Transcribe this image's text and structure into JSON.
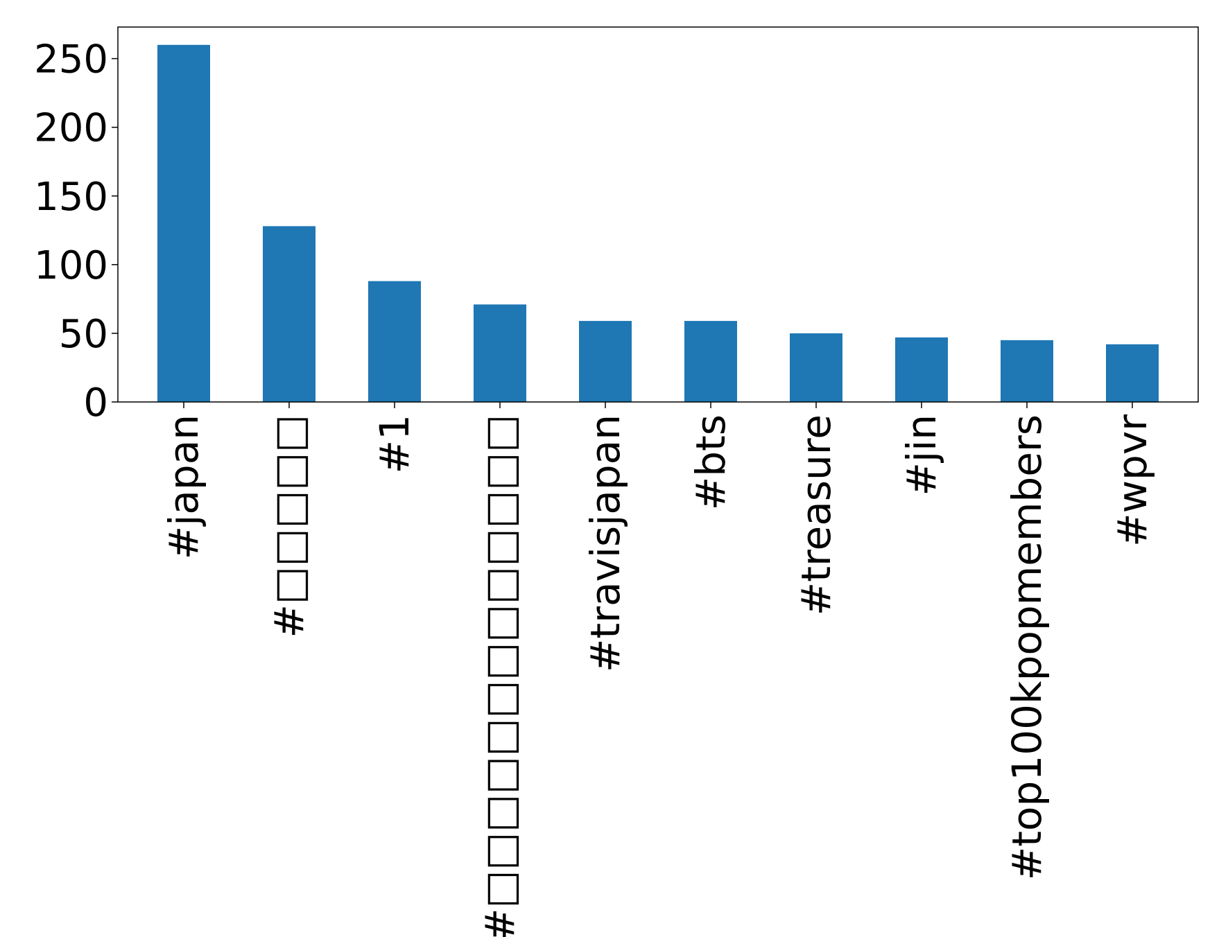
{
  "chart_data": {
    "type": "bar",
    "title": "",
    "xlabel": "",
    "ylabel": "",
    "categories": [
      "#japan",
      "#□□□□□",
      "#1",
      "#□□□□□□□□□□□□□",
      "#travisjapan",
      "#bts",
      "#treasure",
      "#jin",
      "#top100kpopmembers",
      "#wpvr"
    ],
    "values": [
      260,
      128,
      88,
      71,
      59,
      59,
      50,
      47,
      45,
      42
    ],
    "ylim": [
      0,
      273
    ],
    "yticks": [
      0,
      50,
      100,
      150,
      200,
      250
    ],
    "ytick_labels": [
      "0",
      "50",
      "100",
      "150",
      "200",
      "250"
    ],
    "bar_color": "#1f77b4",
    "grid": false,
    "legend": "none"
  }
}
